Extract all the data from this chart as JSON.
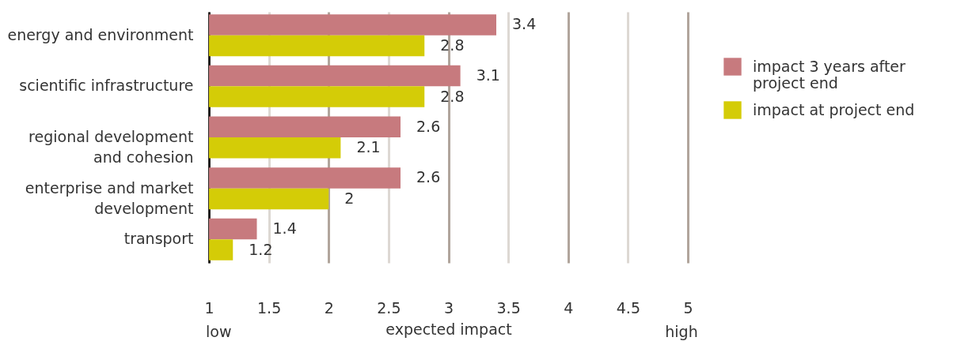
{
  "chart_data": {
    "type": "bar",
    "orientation": "horizontal",
    "xlabel": "expected impact",
    "categories": [
      "energy and environment",
      "scientific infrastructure",
      "regional development and cohesion",
      "enterprise and market development",
      "transport"
    ],
    "series": [
      {
        "name": "impact 3 years after project end",
        "color": "#c77a7e",
        "values": [
          3.4,
          3.1,
          2.6,
          2.6,
          1.4
        ]
      },
      {
        "name": "impact at project end",
        "color": "#d4cc07",
        "values": [
          2.8,
          2.8,
          2.1,
          2,
          1.2
        ]
      }
    ],
    "xlim": [
      1,
      5
    ],
    "xticks": [
      1,
      1.5,
      2,
      2.5,
      3,
      3.5,
      4,
      4.5,
      5
    ],
    "grid": "x",
    "legend": "right",
    "data_labels": true,
    "annotations": [
      "low",
      "high"
    ]
  }
}
